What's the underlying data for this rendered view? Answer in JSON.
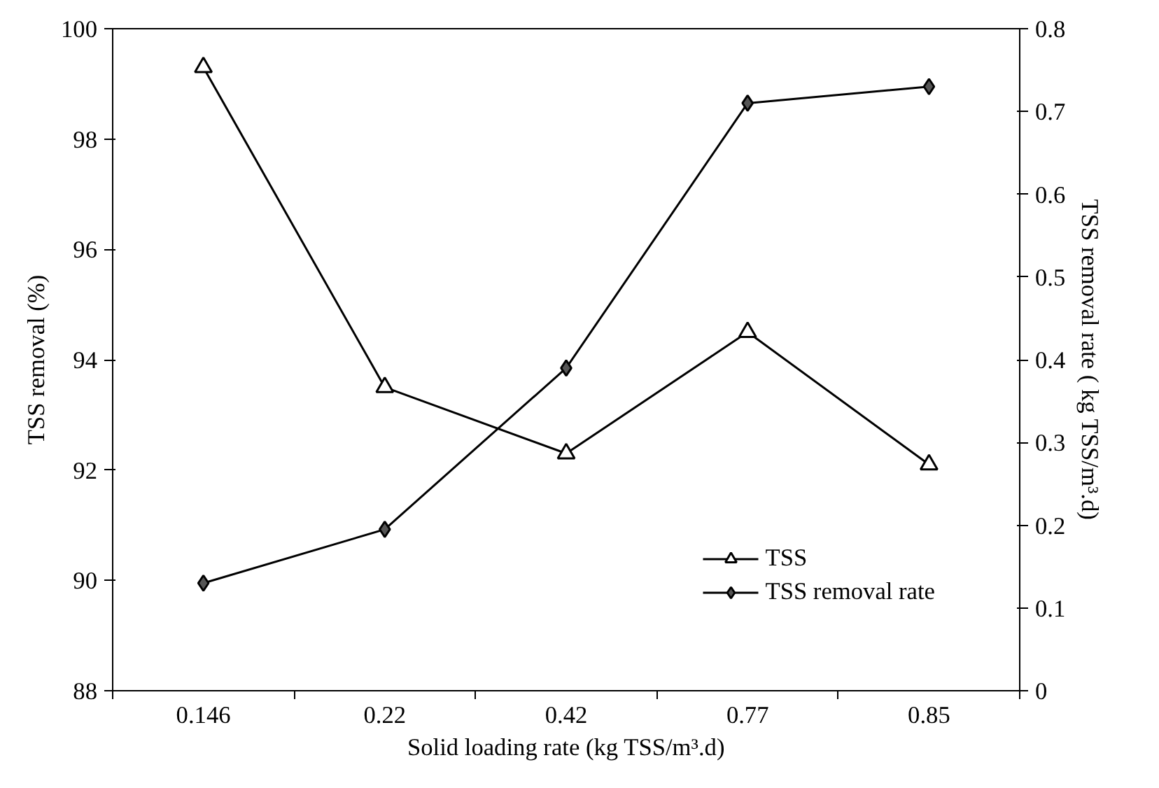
{
  "chart_data": {
    "type": "line",
    "xlabel": "Solid loading rate (kg TSS/m³.d)",
    "ylabel": "TSS removal (%)",
    "y2label": "TSS removal rate ( kg TSS/m³.d)",
    "categories": [
      "0.146",
      "0.22",
      "0.42",
      "0.77",
      "0.85"
    ],
    "ylim": [
      88,
      100
    ],
    "yticks": [
      88,
      90,
      92,
      94,
      96,
      98,
      100
    ],
    "y2lim": [
      0,
      0.8
    ],
    "y2ticks": [
      0,
      0.1,
      0.2,
      0.3,
      0.4,
      0.5,
      0.6,
      0.7,
      0.8
    ],
    "series": [
      {
        "name": "TSS",
        "color": "#000000",
        "marker": "triangle",
        "values": [
          99.3,
          93.5,
          92.3,
          94.5,
          92.1
        ]
      },
      {
        "name": "TSS removal rate",
        "color": "#000000",
        "marker": "diamond",
        "axis": "y2",
        "values": [
          0.13,
          0.195,
          0.39,
          0.71,
          0.73
        ]
      }
    ],
    "grid": false,
    "legend": "bottom right",
    "line_style": "solid"
  }
}
